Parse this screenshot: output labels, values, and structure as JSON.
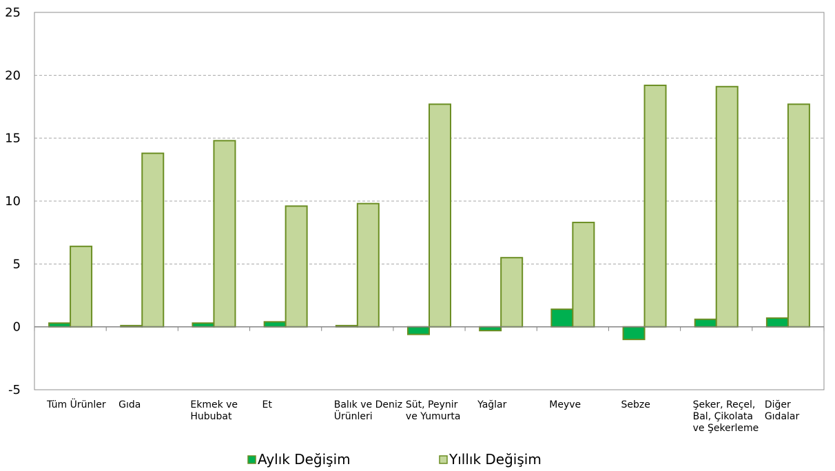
{
  "chart_data": {
    "type": "bar",
    "title": "",
    "xlabel": "",
    "ylabel": "",
    "ylim": [
      -5,
      25
    ],
    "yticks": [
      "-5",
      "0",
      "5",
      "10",
      "15",
      "20",
      "25"
    ],
    "grid": true,
    "legend_position": "bottom",
    "categories": [
      "Tüm Ürünler",
      "Gıda",
      "Ekmek ve Hububat",
      "Et",
      "Balık ve Deniz Ürünleri",
      "Süt, Peynir ve Yumurta",
      "Yağlar",
      "Meyve",
      "Sebze",
      "Şeker, Reçel, Bal, Çikolata ve Şekerleme",
      "Diğer Gıdalar"
    ],
    "category_label_lines": [
      [
        "Tüm Ürünler"
      ],
      [
        "Gıda"
      ],
      [
        "Ekmek ve",
        "Hububat"
      ],
      [
        "Et"
      ],
      [
        "Balık ve Deniz",
        "Ürünleri"
      ],
      [
        "Süt, Peynir",
        "ve Yumurta"
      ],
      [
        "Yağlar"
      ],
      [
        "Meyve"
      ],
      [
        "Sebze"
      ],
      [
        "Şeker, Reçel,",
        "Bal, Çikolata",
        "ve Şekerleme"
      ],
      [
        "Diğer",
        "Gıdalar"
      ]
    ],
    "series": [
      {
        "name": "Aylık Değişim",
        "color": "#00b050",
        "values": [
          0.3,
          0.1,
          0.3,
          0.4,
          0.1,
          -0.6,
          -0.3,
          1.4,
          -1.0,
          0.6,
          0.7
        ]
      },
      {
        "name": "Yıllık Değişim",
        "color": "#c4d79b",
        "values": [
          6.4,
          13.8,
          14.8,
          9.6,
          9.8,
          17.7,
          5.5,
          8.3,
          19.2,
          19.1,
          17.7
        ]
      }
    ],
    "bar_stroke": "#6b8e23",
    "grid_color": "#a6a6a6"
  }
}
